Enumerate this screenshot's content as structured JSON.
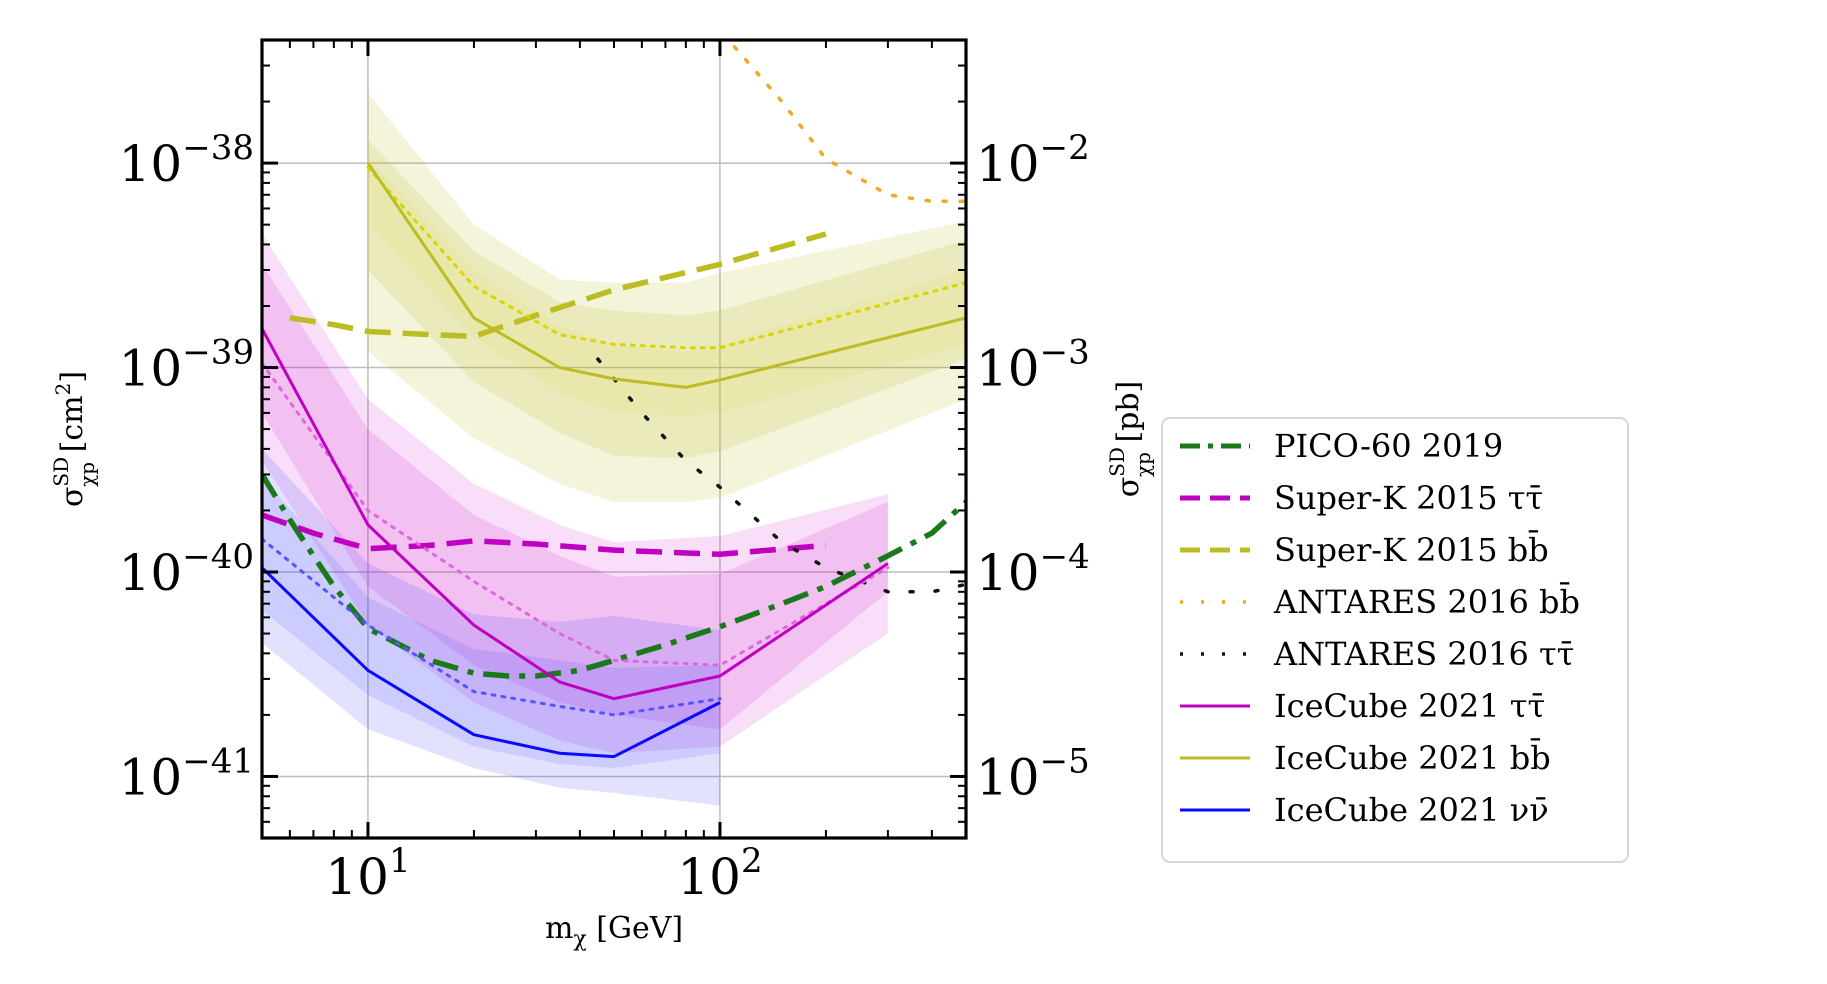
{
  "chart_data": {
    "type": "line",
    "xlabel": "m_χ [GeV]",
    "ylabel_left": "σ_χp^SD [cm²]",
    "ylabel_right": "σ_χp^SD [pb]",
    "xscale": "log",
    "yscale": "log",
    "xlim": [
      5,
      500
    ],
    "ylim": [
      5e-42,
      4e-38
    ],
    "grid": true,
    "legend_position": "right, outside plot",
    "x_ticks": [
      {
        "value": 10,
        "base": "10",
        "exp": "1"
      },
      {
        "value": 100,
        "base": "10",
        "exp": "2"
      }
    ],
    "y_ticks_left": [
      {
        "value": 1e-38,
        "base": "10",
        "exp": "−38"
      },
      {
        "value": 1e-39,
        "base": "10",
        "exp": "−39"
      },
      {
        "value": 1e-40,
        "base": "10",
        "exp": "−40"
      },
      {
        "value": 1e-41,
        "base": "10",
        "exp": "−41"
      }
    ],
    "y_ticks_right": [
      {
        "value": 1e-38,
        "base": "10",
        "exp": "−2"
      },
      {
        "value": 1e-39,
        "base": "10",
        "exp": "−3"
      },
      {
        "value": 1e-40,
        "base": "10",
        "exp": "−4"
      },
      {
        "value": 1e-41,
        "base": "10",
        "exp": "−5"
      }
    ],
    "bands": [
      {
        "color": "#bcbd22",
        "opacity": 0.16,
        "x": [
          10,
          20,
          35,
          50,
          80,
          100,
          500
        ],
        "lower": [
          1.2e-39,
          4.5e-40,
          2.7e-40,
          2.2e-40,
          2.2e-40,
          2.3e-40,
          7e-40
        ],
        "upper": [
          2.2e-38,
          5e-39,
          2.7e-39,
          2.6e-39,
          2.6e-39,
          2.9e-39,
          5.2e-39
        ]
      },
      {
        "color": "#bcbd22",
        "opacity": 0.16,
        "x": [
          10,
          20,
          35,
          50,
          80,
          100,
          500
        ],
        "lower": [
          3e-39,
          8.5e-40,
          4.8e-40,
          3.7e-40,
          3.6e-40,
          3.9e-40,
          1.1e-39
        ],
        "upper": [
          1.3e-38,
          3.7e-39,
          2.1e-39,
          1.9e-39,
          1.8e-39,
          1.9e-39,
          4.2e-39
        ]
      },
      {
        "color": "#d6d600",
        "opacity": 0.08,
        "x": [
          10,
          20,
          35,
          50,
          80,
          100,
          500
        ],
        "lower": [
          5e-39,
          1.4e-39,
          7.5e-40,
          6e-40,
          5.8e-40,
          6e-40,
          1.3e-39
        ],
        "upper": [
          1.05e-38,
          3e-39,
          1.6e-39,
          1.3e-39,
          1.2e-39,
          1.3e-39,
          3e-39
        ]
      },
      {
        "color": "#c800c8",
        "opacity": 0.13,
        "x": [
          5,
          10,
          20,
          35,
          50,
          100,
          300
        ],
        "lower": [
          3.5e-40,
          5.5e-41,
          2.3e-41,
          1.5e-41,
          1.3e-41,
          1.4e-41,
          5e-41
        ],
        "upper": [
          4.5e-39,
          7e-40,
          2.7e-40,
          1.7e-40,
          1.4e-40,
          1.5e-40,
          2.4e-40
        ]
      },
      {
        "color": "#c800c8",
        "opacity": 0.13,
        "x": [
          5,
          10,
          20,
          35,
          50,
          100,
          300
        ],
        "lower": [
          6e-40,
          8.5e-41,
          3.5e-41,
          2.3e-41,
          2e-41,
          1.7e-41,
          8e-41
        ],
        "upper": [
          3.2e-39,
          5e-40,
          1.9e-40,
          1.2e-40,
          9.5e-41,
          9.8e-41,
          2.2e-40
        ]
      },
      {
        "color": "#3232ff",
        "opacity": 0.14,
        "x": [
          5,
          10,
          20,
          35,
          50,
          100
        ],
        "lower": [
          4.5e-41,
          1.7e-41,
          1.1e-41,
          8.8e-42,
          8.3e-42,
          7.2e-42
        ],
        "upper": [
          4e-40,
          1.1e-40,
          6.2e-41,
          5.7e-41,
          6.1e-41,
          5.2e-41
        ]
      },
      {
        "color": "#3232ff",
        "opacity": 0.12,
        "x": [
          5,
          10,
          20,
          35,
          50,
          100
        ],
        "lower": [
          6.5e-41,
          2.5e-41,
          1.4e-41,
          1.15e-41,
          1.1e-41,
          1.3e-41
        ],
        "upper": [
          2.9e-40,
          7.5e-41,
          4.2e-41,
          3.7e-41,
          3.4e-41,
          3.5e-41
        ]
      }
    ],
    "series": [
      {
        "name": "PICO-60 2019",
        "color": "#1a7a1a",
        "style": "dashdot",
        "width": 5.5,
        "legend": true,
        "x": [
          5,
          6,
          7,
          8,
          10,
          15,
          20,
          25,
          30,
          40,
          50,
          70,
          100,
          150,
          200,
          300,
          400,
          500
        ],
        "y": [
          3e-40,
          1.8e-40,
          1.2e-40,
          8.5e-41,
          5.3e-41,
          3.7e-41,
          3.2e-41,
          3.1e-41,
          3.1e-41,
          3.3e-41,
          3.7e-41,
          4.4e-41,
          5.4e-41,
          7e-41,
          8.5e-41,
          1.2e-40,
          1.55e-40,
          2.2e-40
        ]
      },
      {
        "name": "Super-K 2015 ττ̄",
        "color": "#c000c0",
        "style": "dashed",
        "width": 5.5,
        "legend": true,
        "x": [
          5,
          7,
          10,
          15,
          20,
          30,
          50,
          100,
          200
        ],
        "y": [
          1.9e-40,
          1.55e-40,
          1.3e-40,
          1.35e-40,
          1.42e-40,
          1.37e-40,
          1.28e-40,
          1.22e-40,
          1.35e-40
        ]
      },
      {
        "name": "Super-K 2015 bb̄",
        "color": "#bcbd22",
        "style": "dashed",
        "width": 5.5,
        "legend": true,
        "x": [
          6,
          8,
          10,
          15,
          20,
          30,
          50,
          100,
          200
        ],
        "y": [
          1.75e-39,
          1.62e-39,
          1.5e-39,
          1.45e-39,
          1.42e-39,
          1.8e-39,
          2.4e-39,
          3.2e-39,
          4.5e-39
        ]
      },
      {
        "name": "ANTARES 2016 bb̄",
        "color": "#f5a623",
        "style": "dotted-orange",
        "width": 3.5,
        "legend": true,
        "x": [
          110,
          150,
          200,
          300,
          400,
          500
        ],
        "y": [
          3.7e-38,
          2e-38,
          1.05e-38,
          7e-39,
          6.5e-39,
          6.5e-39
        ]
      },
      {
        "name": "ANTARES 2016 ττ̄",
        "color": "#111111",
        "style": "dotted-black",
        "width": 3.5,
        "legend": true,
        "x": [
          45,
          60,
          80,
          100,
          150,
          200,
          300,
          400,
          500
        ],
        "y": [
          1.1e-39,
          6e-40,
          3.5e-40,
          2.6e-40,
          1.4e-40,
          1.05e-40,
          8e-41,
          8e-41,
          8.7e-41
        ]
      },
      {
        "name": "",
        "color": "#e066e0",
        "style": "dotted",
        "width": 3,
        "legend": false,
        "x": [
          5,
          10,
          20,
          35,
          50,
          100,
          300
        ],
        "y": [
          1.05e-39,
          2e-40,
          9e-41,
          5e-41,
          3.7e-41,
          3.5e-41,
          1.05e-40
        ]
      },
      {
        "name": "IceCube 2021 ττ̄",
        "color": "#c000c0",
        "style": "solid",
        "width": 3,
        "legend": true,
        "x": [
          5,
          10,
          20,
          35,
          50,
          100,
          300
        ],
        "y": [
          1.55e-39,
          1.7e-40,
          5.5e-41,
          2.9e-41,
          2.4e-41,
          3.1e-41,
          1.1e-40
        ]
      },
      {
        "name": "",
        "color": "#d6d600",
        "style": "dotted",
        "width": 3,
        "legend": false,
        "x": [
          10,
          20,
          35,
          50,
          80,
          100,
          500
        ],
        "y": [
          9.5e-39,
          2.5e-39,
          1.45e-39,
          1.3e-39,
          1.25e-39,
          1.25e-39,
          2.6e-39
        ]
      },
      {
        "name": "IceCube 2021 bb̄",
        "color": "#bcbd22",
        "style": "solid",
        "width": 3,
        "legend": true,
        "x": [
          10,
          20,
          35,
          50,
          80,
          100,
          500
        ],
        "y": [
          1e-38,
          1.75e-39,
          1e-39,
          8.8e-40,
          8e-40,
          8.7e-40,
          1.75e-39
        ]
      },
      {
        "name": "",
        "color": "#5555ff",
        "style": "dotted",
        "width": 3,
        "legend": false,
        "x": [
          5,
          10,
          20,
          35,
          50,
          100
        ],
        "y": [
          1.45e-40,
          5.5e-41,
          2.6e-41,
          2.2e-41,
          2e-41,
          2.4e-41
        ]
      },
      {
        "name": "IceCube 2021 νν̄",
        "color": "#0a0aff",
        "style": "solid",
        "width": 3,
        "legend": true,
        "x": [
          5,
          10,
          20,
          35,
          50,
          100
        ],
        "y": [
          1.05e-40,
          3.3e-41,
          1.6e-41,
          1.3e-41,
          1.25e-41,
          2.3e-41
        ]
      }
    ]
  }
}
